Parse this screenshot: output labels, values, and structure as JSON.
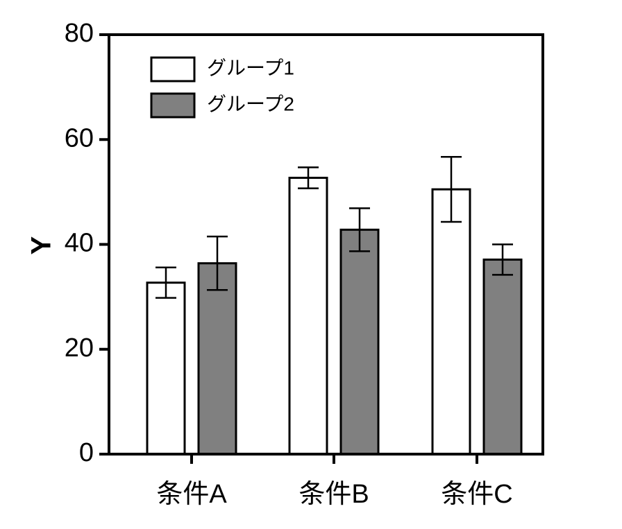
{
  "chart_data": {
    "type": "bar",
    "categories": [
      "条件A",
      "条件B",
      "条件C"
    ],
    "series": [
      {
        "name": "グループ1",
        "values": [
          32.7,
          52.7,
          50.5
        ],
        "errors": [
          2.9,
          2.0,
          6.2
        ],
        "color": "#ffffff"
      },
      {
        "name": "グループ2",
        "values": [
          36.4,
          42.8,
          37.1
        ],
        "errors": [
          5.1,
          4.1,
          2.9
        ],
        "color": "#808080"
      }
    ],
    "ylabel": "Y",
    "xlabel": "",
    "ylim": [
      0,
      80
    ],
    "yticks": [
      "0",
      "20",
      "40",
      "60",
      "80"
    ],
    "legend_position": "top-left",
    "grid": false
  }
}
